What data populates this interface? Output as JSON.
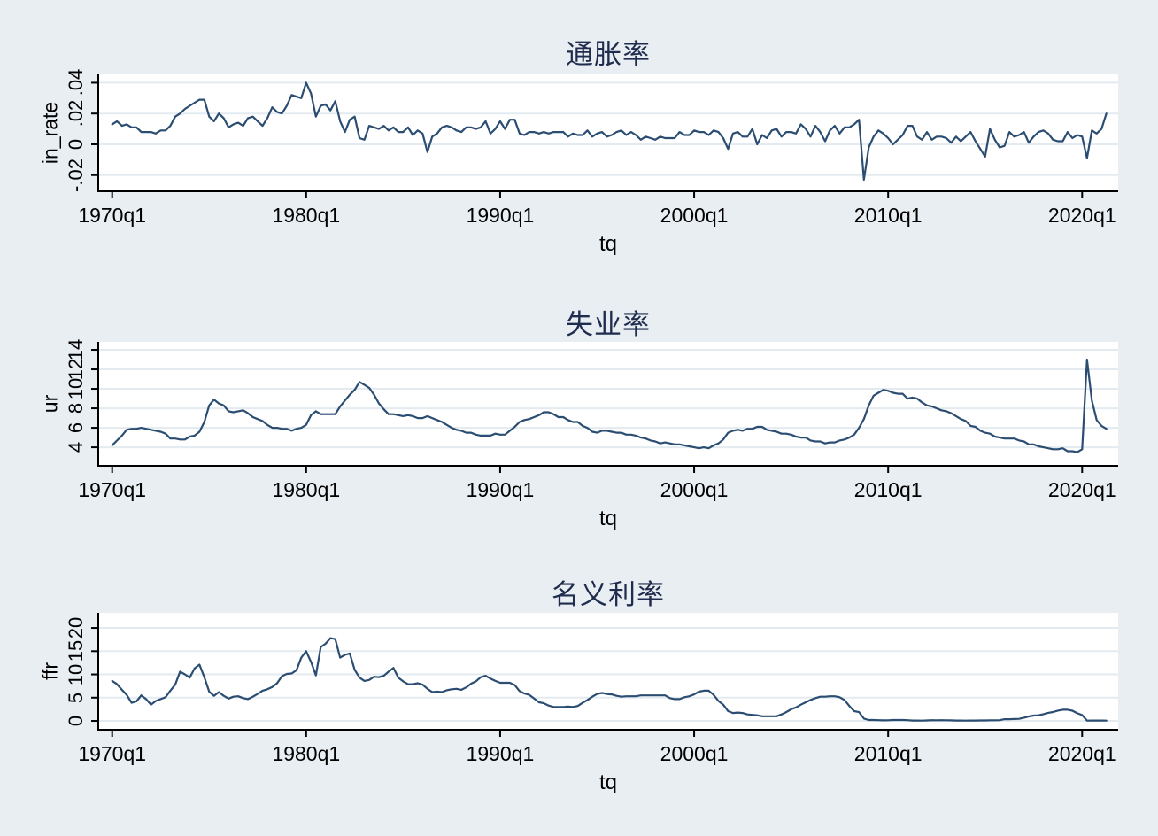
{
  "figure": {
    "background_color": "#e9eef2",
    "plot_background_color": "#ffffff",
    "grid_color": "#e3ebf0",
    "axis_color": "#000000",
    "title_color": "#1f2c4e",
    "line_color": "#2b4d72"
  },
  "chart_data": [
    {
      "type": "line",
      "title": "通胀率",
      "xlabel": "tq",
      "ylabel": "in_rate",
      "x_start": "1970q1",
      "x_end": "2021q2",
      "x_frequency": "quarterly",
      "xtick_labels": [
        "1970q1",
        "1980q1",
        "1990q1",
        "2000q1",
        "2010q1",
        "2020q1"
      ],
      "xtick_quarters": [
        0,
        40,
        80,
        120,
        160,
        200
      ],
      "ytick_labels": [
        "-.02",
        "0",
        ".02",
        ".04"
      ],
      "ytick_values": [
        -0.02,
        0,
        0.02,
        0.04
      ],
      "ylim": [
        -0.0305,
        0.046
      ],
      "grid": true,
      "legend": "none",
      "values": [
        0.013,
        0.015,
        0.012,
        0.013,
        0.011,
        0.011,
        0.008,
        0.008,
        0.008,
        0.007,
        0.009,
        0.009,
        0.012,
        0.018,
        0.02,
        0.023,
        0.025,
        0.027,
        0.029,
        0.029,
        0.018,
        0.015,
        0.02,
        0.017,
        0.011,
        0.013,
        0.014,
        0.012,
        0.017,
        0.018,
        0.015,
        0.012,
        0.017,
        0.024,
        0.021,
        0.02,
        0.025,
        0.032,
        0.031,
        0.03,
        0.04,
        0.033,
        0.018,
        0.025,
        0.026,
        0.022,
        0.028,
        0.015,
        0.008,
        0.016,
        0.018,
        0.004,
        0.003,
        0.012,
        0.011,
        0.01,
        0.012,
        0.009,
        0.011,
        0.008,
        0.008,
        0.011,
        0.006,
        0.009,
        0.007,
        -0.005,
        0.005,
        0.007,
        0.011,
        0.012,
        0.011,
        0.009,
        0.008,
        0.011,
        0.011,
        0.01,
        0.011,
        0.015,
        0.007,
        0.01,
        0.015,
        0.01,
        0.016,
        0.016,
        0.007,
        0.006,
        0.008,
        0.008,
        0.007,
        0.008,
        0.007,
        0.008,
        0.008,
        0.008,
        0.005,
        0.007,
        0.006,
        0.006,
        0.009,
        0.005,
        0.007,
        0.008,
        0.005,
        0.006,
        0.008,
        0.009,
        0.006,
        0.008,
        0.006,
        0.003,
        0.005,
        0.004,
        0.003,
        0.005,
        0.004,
        0.004,
        0.004,
        0.008,
        0.006,
        0.006,
        0.009,
        0.008,
        0.008,
        0.006,
        0.009,
        0.008,
        0.004,
        -0.003,
        0.007,
        0.008,
        0.005,
        0.005,
        0.01,
        0,
        0.006,
        0.004,
        0.009,
        0.01,
        0.005,
        0.008,
        0.008,
        0.007,
        0.013,
        0.01,
        0.005,
        0.012,
        0.008,
        0.002,
        0.009,
        0.012,
        0.007,
        0.011,
        0.011,
        0.013,
        0.016,
        -0.023,
        -0.002,
        0.005,
        0.009,
        0.007,
        0.004,
        0,
        0.003,
        0.006,
        0.012,
        0.012,
        0.005,
        0.003,
        0.008,
        0.003,
        0.005,
        0.005,
        0.004,
        0.001,
        0.005,
        0.002,
        0.005,
        0.008,
        0.002,
        -0.003,
        -0.008,
        0.01,
        0.003,
        -0.002,
        -0.001,
        0.008,
        0.005,
        0.006,
        0.008,
        0.001,
        0.005,
        0.008,
        0.009,
        0.007,
        0.003,
        0.002,
        0.002,
        0.008,
        0.004,
        0.006,
        0.005,
        -0.009,
        0.009,
        0.007,
        0.01,
        0.02
      ]
    },
    {
      "type": "line",
      "title": "失业率",
      "xlabel": "tq",
      "ylabel": "ur",
      "x_start": "1970q1",
      "x_end": "2021q2",
      "x_frequency": "quarterly",
      "xtick_labels": [
        "1970q1",
        "1980q1",
        "1990q1",
        "2000q1",
        "2010q1",
        "2020q1"
      ],
      "xtick_quarters": [
        0,
        40,
        80,
        120,
        160,
        200
      ],
      "ytick_labels": [
        "4",
        "6",
        "8",
        "10",
        "12",
        "14"
      ],
      "ytick_values": [
        4,
        6,
        8,
        10,
        12,
        14
      ],
      "ylim": [
        2.1,
        14.82
      ],
      "grid": true,
      "legend": "none",
      "values": [
        4.2,
        4.7,
        5.2,
        5.8,
        5.9,
        5.9,
        6,
        5.9,
        5.8,
        5.7,
        5.6,
        5.4,
        4.9,
        4.9,
        4.8,
        4.8,
        5.1,
        5.2,
        5.6,
        6.6,
        8.3,
        8.9,
        8.5,
        8.3,
        7.7,
        7.6,
        7.7,
        7.8,
        7.5,
        7.1,
        6.9,
        6.7,
        6.3,
        6,
        6,
        5.9,
        5.9,
        5.7,
        5.9,
        6,
        6.3,
        7.3,
        7.7,
        7.4,
        7.4,
        7.4,
        7.4,
        8.2,
        8.8,
        9.4,
        9.9,
        10.7,
        10.4,
        10.1,
        9.4,
        8.5,
        7.9,
        7.4,
        7.4,
        7.3,
        7.2,
        7.3,
        7.2,
        7,
        7,
        7.2,
        7,
        6.8,
        6.6,
        6.3,
        6,
        5.8,
        5.7,
        5.5,
        5.5,
        5.3,
        5.2,
        5.2,
        5.2,
        5.4,
        5.3,
        5.3,
        5.7,
        6.1,
        6.6,
        6.8,
        6.9,
        7.1,
        7.3,
        7.6,
        7.6,
        7.4,
        7.1,
        7.1,
        6.8,
        6.6,
        6.6,
        6.2,
        6,
        5.6,
        5.5,
        5.7,
        5.7,
        5.6,
        5.5,
        5.5,
        5.3,
        5.3,
        5.2,
        5,
        4.9,
        4.7,
        4.6,
        4.4,
        4.5,
        4.4,
        4.3,
        4.3,
        4.2,
        4.1,
        4,
        3.9,
        4,
        3.9,
        4.2,
        4.4,
        4.8,
        5.5,
        5.7,
        5.8,
        5.7,
        5.9,
        5.9,
        6.1,
        6.1,
        5.8,
        5.7,
        5.6,
        5.4,
        5.4,
        5.3,
        5.1,
        5,
        5,
        4.7,
        4.6,
        4.6,
        4.4,
        4.5,
        4.5,
        4.7,
        4.8,
        5,
        5.3,
        6,
        6.9,
        8.3,
        9.3,
        9.6,
        9.9,
        9.8,
        9.6,
        9.5,
        9.5,
        9,
        9.1,
        9,
        8.6,
        8.3,
        8.2,
        8,
        7.8,
        7.7,
        7.5,
        7.2,
        6.9,
        6.7,
        6.2,
        6.1,
        5.7,
        5.5,
        5.4,
        5.1,
        5,
        4.9,
        4.9,
        4.9,
        4.7,
        4.6,
        4.3,
        4.3,
        4.1,
        4,
        3.9,
        3.8,
        3.8,
        3.9,
        3.6,
        3.6,
        3.5,
        3.8,
        13,
        8.8,
        6.8,
        6.2,
        5.9
      ]
    },
    {
      "type": "line",
      "title": "名义利率",
      "xlabel": "tq",
      "ylabel": "ffr",
      "x_start": "1970q1",
      "x_end": "2021q2",
      "x_frequency": "quarterly",
      "xtick_labels": [
        "1970q1",
        "1980q1",
        "1990q1",
        "2000q1",
        "2010q1",
        "2020q1"
      ],
      "xtick_quarters": [
        0,
        40,
        80,
        120,
        160,
        200
      ],
      "ytick_labels": [
        "0",
        "5",
        "10",
        "15",
        "20"
      ],
      "ytick_values": [
        0,
        5,
        10,
        15,
        20
      ],
      "ylim": [
        -1.9,
        23.25
      ],
      "grid": true,
      "legend": "none",
      "values": [
        8.6,
        7.9,
        6.7,
        5.6,
        3.9,
        4.2,
        5.5,
        4.7,
        3.5,
        4.3,
        4.7,
        5.1,
        6.5,
        7.8,
        10.6,
        10,
        9.3,
        11.3,
        12.1,
        9.4,
        6.3,
        5.4,
        6.2,
        5.4,
        4.8,
        5.2,
        5.3,
        4.9,
        4.7,
        5.2,
        5.8,
        6.5,
        6.8,
        7.3,
        8.1,
        9.6,
        10.1,
        10.2,
        10.9,
        13.6,
        15,
        12.7,
        9.8,
        15.9,
        16.6,
        17.8,
        17.6,
        13.6,
        14.2,
        14.5,
        11,
        9.3,
        8.6,
        8.8,
        9.5,
        9.4,
        9.7,
        10.6,
        11.4,
        9.3,
        8.5,
        7.9,
        7.9,
        8.1,
        7.8,
        6.9,
        6.2,
        6.3,
        6.2,
        6.6,
        6.8,
        6.9,
        6.7,
        7.2,
        8,
        8.5,
        9.4,
        9.7,
        9.1,
        8.6,
        8.2,
        8.2,
        8.2,
        7.7,
        6.4,
        5.9,
        5.6,
        4.8,
        4,
        3.8,
        3.3,
        3,
        3,
        3,
        3.1,
        3,
        3.2,
        3.9,
        4.5,
        5.2,
        5.8,
        6,
        5.8,
        5.7,
        5.4,
        5.2,
        5.3,
        5.3,
        5.3,
        5.5,
        5.5,
        5.5,
        5.5,
        5.5,
        5.5,
        4.9,
        4.7,
        4.7,
        5.1,
        5.3,
        5.7,
        6.3,
        6.5,
        6.5,
        5.6,
        4.3,
        3.5,
        2.1,
        1.7,
        1.8,
        1.7,
        1.4,
        1.3,
        1.2,
        1,
        1,
        1,
        1,
        1.4,
        1.9,
        2.5,
        2.9,
        3.5,
        4,
        4.5,
        4.9,
        5.2,
        5.2,
        5.3,
        5.3,
        5.1,
        4.5,
        3.2,
        2.1,
        1.9,
        0.5,
        0.2,
        0.2,
        0.15,
        0.12,
        0.13,
        0.19,
        0.19,
        0.19,
        0.16,
        0.09,
        0.08,
        0.07,
        0.1,
        0.15,
        0.14,
        0.16,
        0.14,
        0.12,
        0.09,
        0.09,
        0.07,
        0.09,
        0.09,
        0.1,
        0.11,
        0.13,
        0.14,
        0.16,
        0.36,
        0.37,
        0.4,
        0.45,
        0.7,
        0.95,
        1.15,
        1.2,
        1.45,
        1.74,
        1.92,
        2.22,
        2.4,
        2.4,
        2.19,
        1.64,
        1.26,
        0.06,
        0.09,
        0.09,
        0.08,
        0.07
      ]
    }
  ]
}
